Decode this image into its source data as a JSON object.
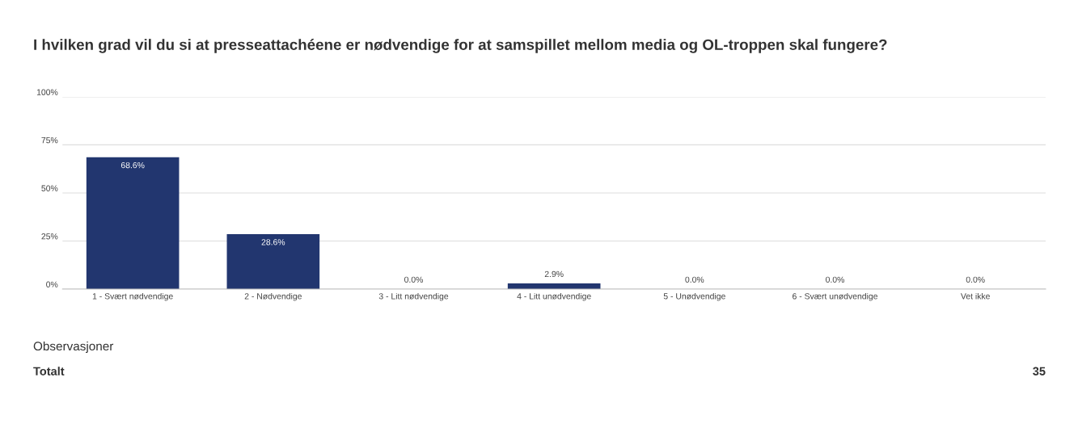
{
  "chart_data": {
    "type": "bar",
    "title": "I hvilken grad vil du si at presseattachéene er nødvendige for at samspillet mellom media og OL-troppen skal fungere?",
    "categories": [
      "1 - Svært nødvendige",
      "2 - Nødvendige",
      "3 - Litt nødvendige",
      "4 - Litt unødvendige",
      "5 - Unødvendige",
      "6 - Svært unødvendige",
      "Vet ikke"
    ],
    "values": [
      68.6,
      28.6,
      0.0,
      2.9,
      0.0,
      0.0,
      0.0
    ],
    "value_labels": [
      "68.6%",
      "28.6%",
      "0.0%",
      "2.9%",
      "0.0%",
      "0.0%",
      "0.0%"
    ],
    "color": "#22366f",
    "ylim": [
      0,
      100
    ],
    "yticks": [
      {
        "value": 0,
        "label": "0%"
      },
      {
        "value": 25,
        "label": "25%"
      },
      {
        "value": 50,
        "label": "50%"
      },
      {
        "value": 75,
        "label": "75%"
      },
      {
        "value": 100,
        "label": "100%"
      }
    ],
    "grid": "y",
    "annotations": [
      "Observasjoner",
      "Totalt",
      "35"
    ]
  }
}
